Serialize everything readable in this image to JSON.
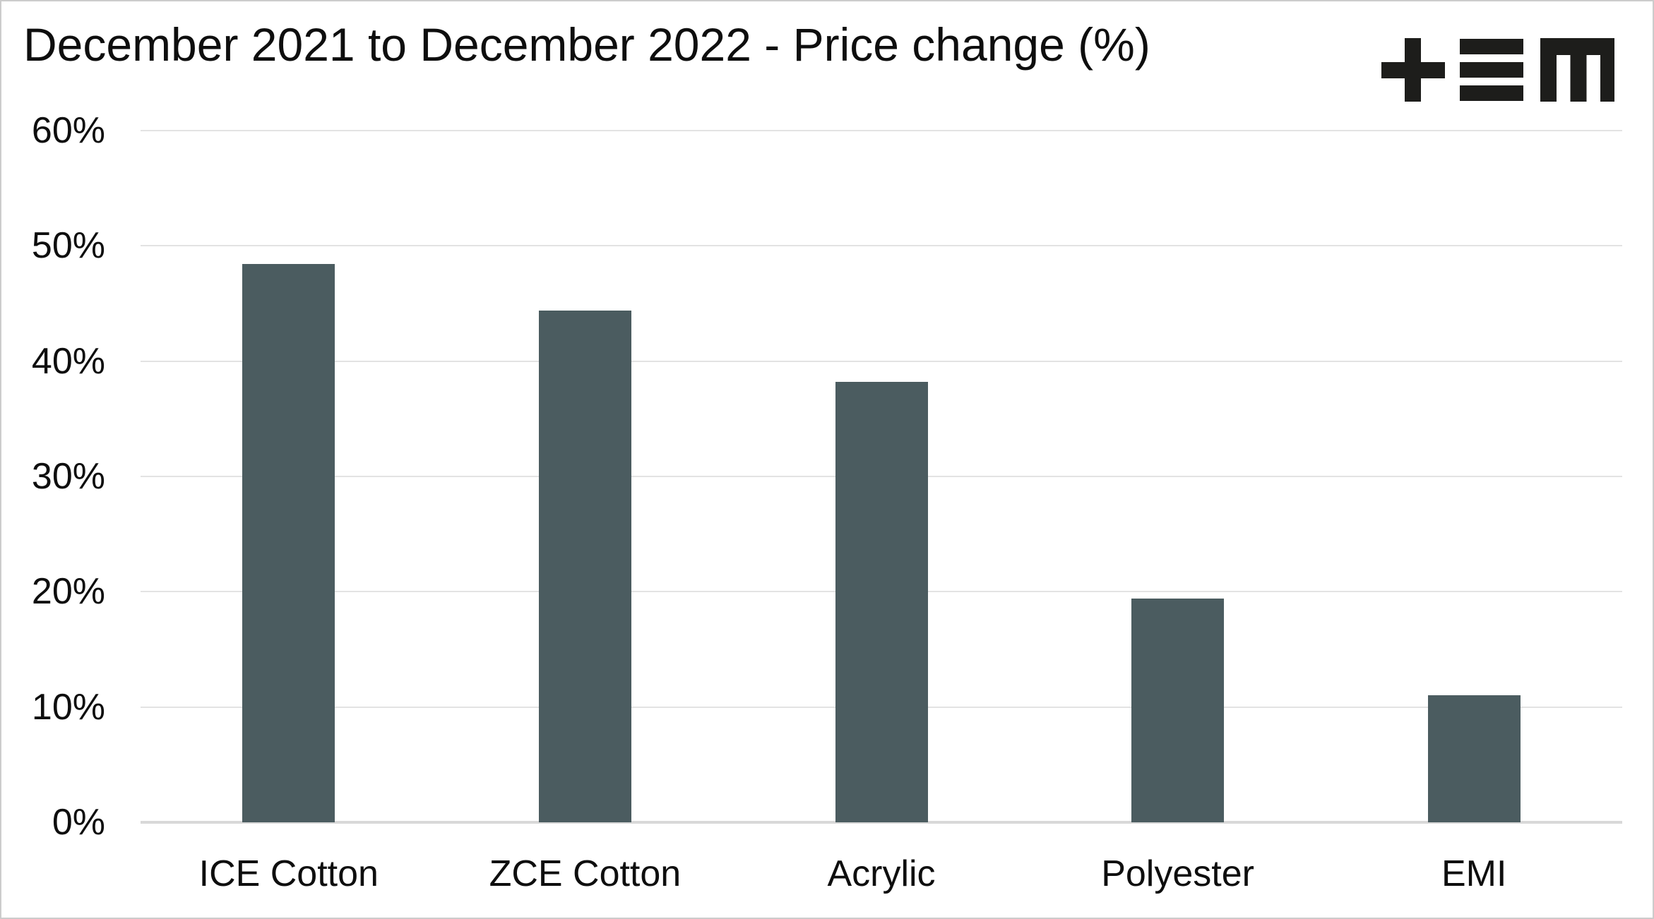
{
  "header": {
    "logo_name": "tem-logo",
    "logo_glyphs": "+ ≡ m"
  },
  "chart_data": {
    "type": "bar",
    "title": "December 2021 to December 2022 - Price change (%)",
    "categories": [
      "ICE Cotton",
      "ZCE Cotton",
      "Acrylic",
      "Polyester",
      "EMI"
    ],
    "values": [
      48.4,
      44.4,
      38.2,
      19.4,
      11.0
    ],
    "value_unit": "%",
    "xlabel": "",
    "ylabel": "",
    "ylim": [
      0,
      60
    ],
    "ytick_step": 10,
    "ytick_labels": [
      "0%",
      "10%",
      "20%",
      "30%",
      "40%",
      "50%",
      "60%"
    ],
    "grid": true,
    "legend_position": "none",
    "colors": {
      "bar": "#4b5c60",
      "gridline": "#e3e3e3",
      "zero_line": "#d8d8d8",
      "text": "#0e0e0e",
      "logo": "#1d1d1b",
      "background": "#ffffff",
      "canvas_border": "#cccccc"
    }
  }
}
